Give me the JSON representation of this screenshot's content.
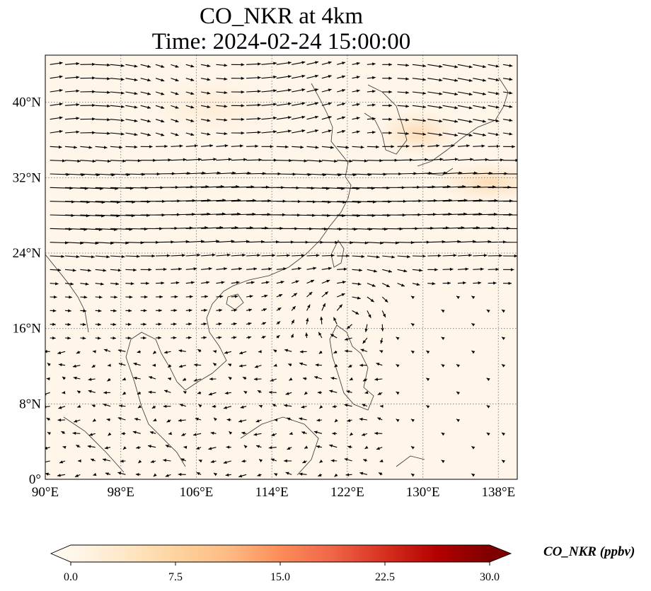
{
  "title": {
    "line1": "CO_NKR at 4km",
    "line2": "Time: 2024-02-24 15:00:00"
  },
  "map": {
    "extent": {
      "lon": [
        90,
        140
      ],
      "lat": [
        0,
        45
      ]
    },
    "x_ticks": [
      {
        "value": 90,
        "label": "90°E"
      },
      {
        "value": 98,
        "label": "98°E"
      },
      {
        "value": 106,
        "label": "106°E"
      },
      {
        "value": 114,
        "label": "114°E"
      },
      {
        "value": 122,
        "label": "122°E"
      },
      {
        "value": 130,
        "label": "130°E"
      },
      {
        "value": 138,
        "label": "138°E"
      }
    ],
    "y_ticks": [
      {
        "value": 0,
        "label": "0°"
      },
      {
        "value": 8,
        "label": "8°N"
      },
      {
        "value": 16,
        "label": "16°N"
      },
      {
        "value": 24,
        "label": "24°N"
      },
      {
        "value": 32,
        "label": "32°N"
      },
      {
        "value": 40,
        "label": "40°N"
      }
    ],
    "gridlines": "dotted",
    "background_color": "#fff5e8",
    "plume_color": "#fde3c4"
  },
  "colorbar": {
    "label": "CO_NKR (ppbv)",
    "min": 0,
    "max": 30,
    "ticks": [
      {
        "value": 0,
        "label": "0.0"
      },
      {
        "value": 7.5,
        "label": "7.5"
      },
      {
        "value": 15,
        "label": "15.0"
      },
      {
        "value": 22.5,
        "label": "22.5"
      },
      {
        "value": 30,
        "label": "30.0"
      }
    ],
    "colormap": [
      "#fff7ec",
      "#fee8c8",
      "#fdd49e",
      "#fdbb84",
      "#fc8d59",
      "#ef6548",
      "#d7301f",
      "#b30000",
      "#7f0000"
    ],
    "extend": "both"
  }
}
